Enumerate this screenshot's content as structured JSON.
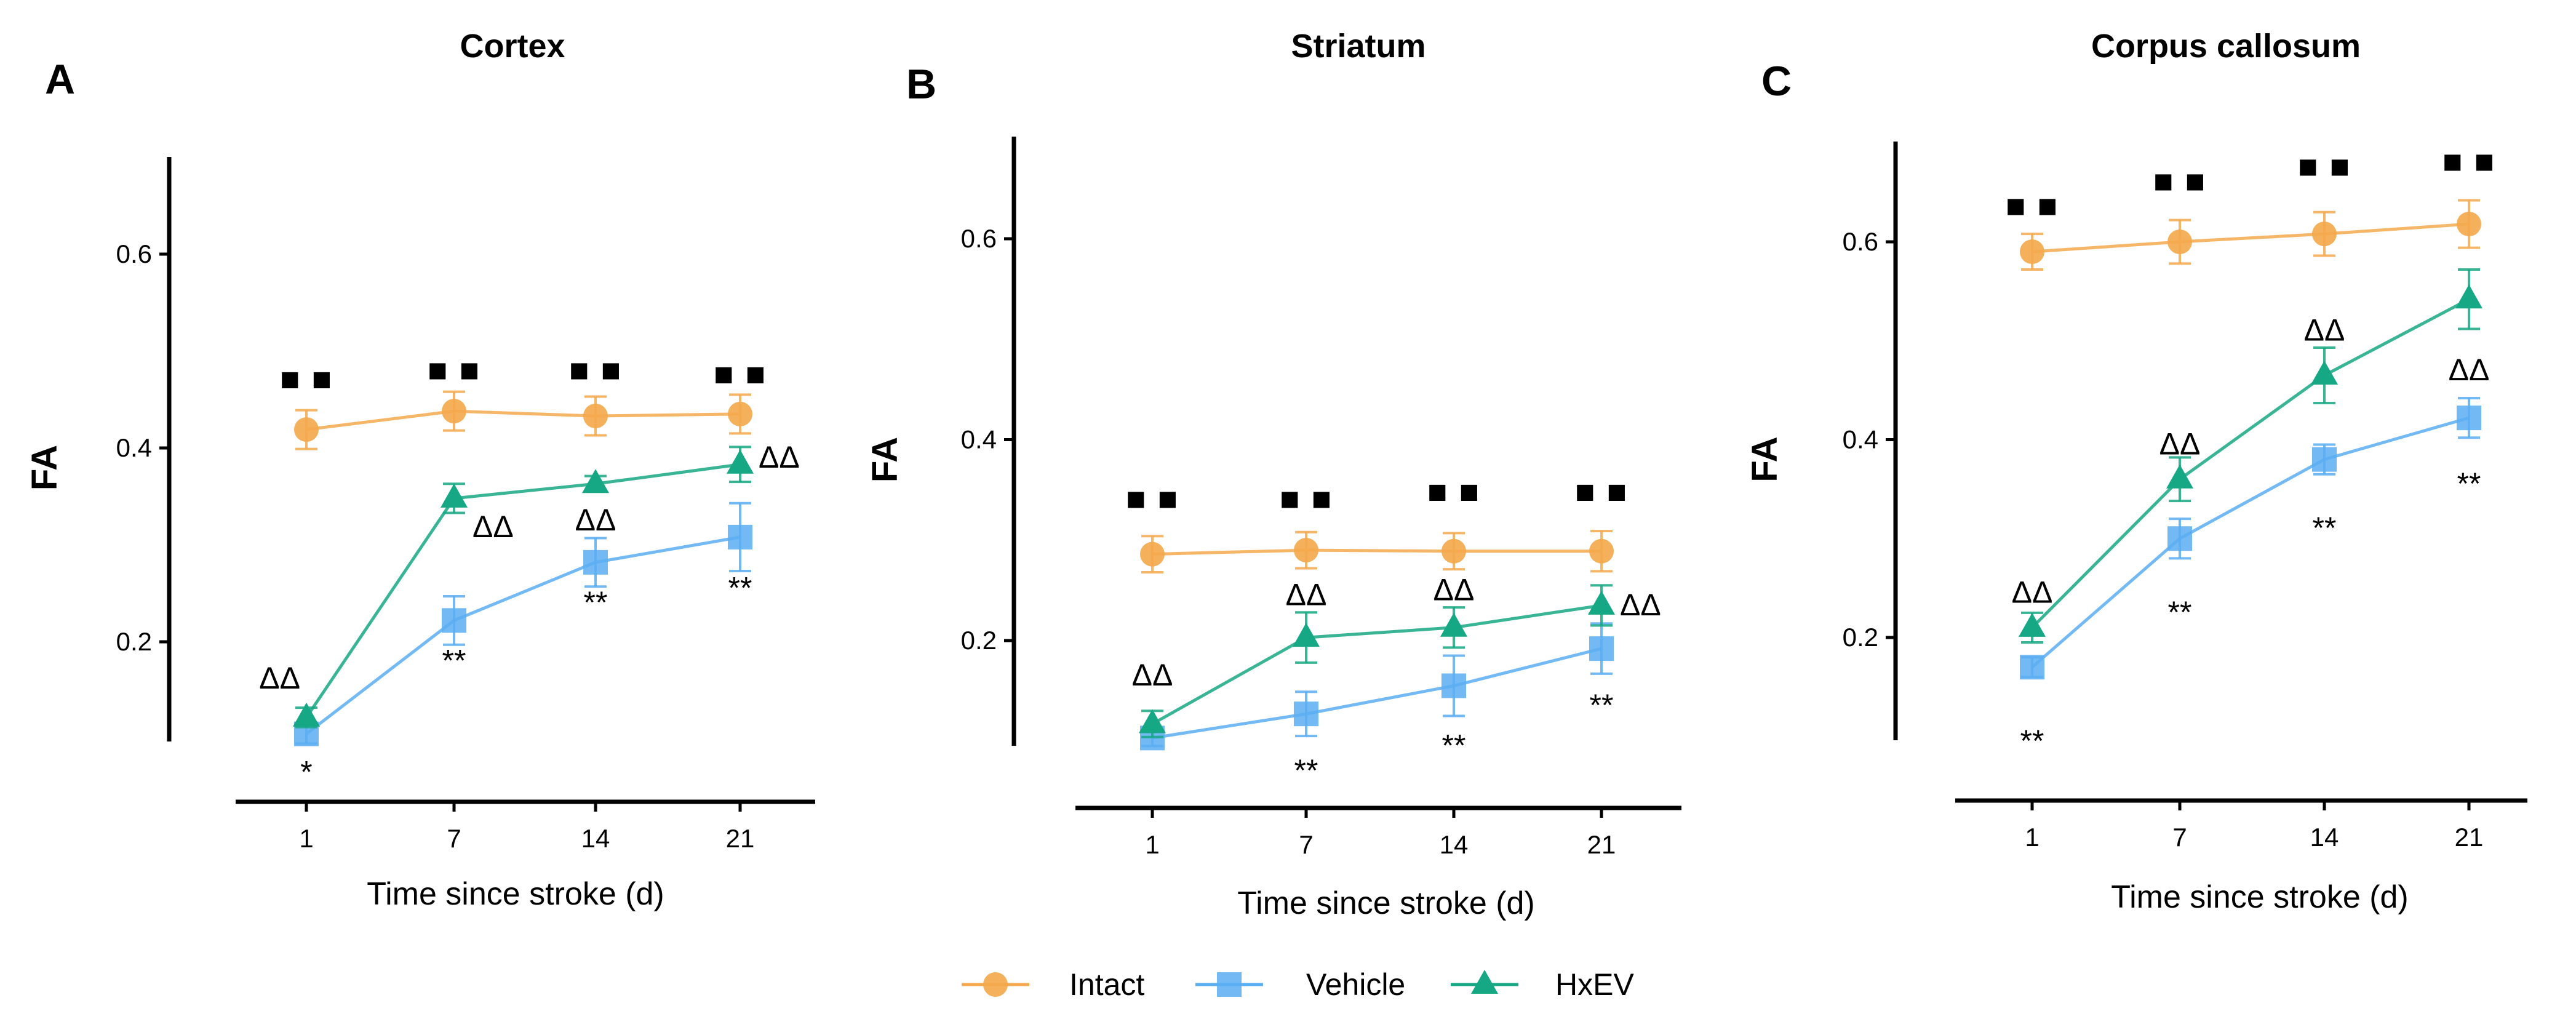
{
  "colors": {
    "Intact": "#f4a94e",
    "Vehicle": "#5aaef2",
    "HxEV": "#16a884",
    "axis": "#000000"
  },
  "legend": {
    "items": [
      {
        "name": "Intact",
        "marker": "circle"
      },
      {
        "name": "Vehicle",
        "marker": "square"
      },
      {
        "name": "HxEV",
        "marker": "triangle"
      }
    ]
  },
  "chart_data": [
    {
      "type": "line",
      "panel": "A",
      "title": "Cortex",
      "xlabel": "Time since stroke (d)",
      "ylabel": "FA",
      "categories": [
        "1",
        "7",
        "14",
        "21"
      ],
      "ylim": [
        0.1,
        0.7
      ],
      "yticks": [
        0.2,
        0.4,
        0.6
      ],
      "ytick_labels": [
        "0.2",
        "0.4",
        "0.6"
      ],
      "series": [
        {
          "name": "Intact",
          "values": [
            0.419,
            0.438,
            0.433,
            0.435
          ],
          "errors": [
            0.02,
            0.02,
            0.02,
            0.02
          ]
        },
        {
          "name": "Vehicle",
          "values": [
            0.105,
            0.222,
            0.282,
            0.308
          ],
          "errors": [
            0.01,
            0.025,
            0.025,
            0.035
          ]
        },
        {
          "name": "HxEV",
          "values": [
            0.122,
            0.348,
            0.363,
            0.383
          ],
          "errors": [
            0.01,
            0.015,
            0.008,
            0.018
          ]
        }
      ],
      "annotations": [
        {
          "text": "■ ■",
          "x": "1",
          "y": 0.47,
          "pos": "center"
        },
        {
          "text": "■ ■",
          "x": "7",
          "y": 0.479,
          "pos": "center"
        },
        {
          "text": "■ ■",
          "x": "14",
          "y": 0.479,
          "pos": "center"
        },
        {
          "text": "■ ■",
          "x": "21",
          "y": 0.475,
          "pos": "center"
        },
        {
          "text": "ΔΔ",
          "x": "1",
          "y": 0.162,
          "pos": "left"
        },
        {
          "text": "ΔΔ",
          "x": "7",
          "y": 0.318,
          "pos": "right"
        },
        {
          "text": "ΔΔ",
          "x": "14",
          "y": 0.325,
          "pos": "center"
        },
        {
          "text": "ΔΔ",
          "x": "21",
          "y": 0.39,
          "pos": "right"
        },
        {
          "text": "*",
          "x": "1",
          "y": 0.065,
          "pos": "center"
        },
        {
          "text": "**",
          "x": "7",
          "y": 0.18,
          "pos": "center"
        },
        {
          "text": "**",
          "x": "14",
          "y": 0.24,
          "pos": "center"
        },
        {
          "text": "**",
          "x": "21",
          "y": 0.255,
          "pos": "center"
        }
      ]
    },
    {
      "type": "line",
      "panel": "B",
      "title": "Striatum",
      "xlabel": "Time since stroke (d)",
      "ylabel": "FA",
      "categories": [
        "1",
        "7",
        "14",
        "21"
      ],
      "ylim": [
        0.1,
        0.7
      ],
      "yticks": [
        0.2,
        0.4,
        0.6
      ],
      "ytick_labels": [
        "0.2",
        "0.4",
        "0.6"
      ],
      "series": [
        {
          "name": "Intact",
          "values": [
            0.286,
            0.29,
            0.289,
            0.289
          ],
          "errors": [
            0.018,
            0.018,
            0.018,
            0.02
          ]
        },
        {
          "name": "Vehicle",
          "values": [
            0.103,
            0.127,
            0.155,
            0.192
          ],
          "errors": [
            0.008,
            0.022,
            0.03,
            0.025
          ]
        },
        {
          "name": "HxEV",
          "values": [
            0.117,
            0.203,
            0.213,
            0.235
          ],
          "errors": [
            0.013,
            0.025,
            0.02,
            0.02
          ]
        }
      ],
      "annotations": [
        {
          "text": "■ ■",
          "x": "1",
          "y": 0.34,
          "pos": "center"
        },
        {
          "text": "■ ■",
          "x": "7",
          "y": 0.34,
          "pos": "center"
        },
        {
          "text": "■ ■",
          "x": "14",
          "y": 0.347,
          "pos": "center"
        },
        {
          "text": "■ ■",
          "x": "21",
          "y": 0.347,
          "pos": "center"
        },
        {
          "text": "ΔΔ",
          "x": "1",
          "y": 0.165,
          "pos": "center"
        },
        {
          "text": "ΔΔ",
          "x": "7",
          "y": 0.245,
          "pos": "center"
        },
        {
          "text": "ΔΔ",
          "x": "14",
          "y": 0.25,
          "pos": "center"
        },
        {
          "text": "ΔΔ",
          "x": "21",
          "y": 0.235,
          "pos": "right"
        },
        {
          "text": "**",
          "x": "7",
          "y": 0.07,
          "pos": "center"
        },
        {
          "text": "**",
          "x": "14",
          "y": 0.095,
          "pos": "center"
        },
        {
          "text": "**",
          "x": "21",
          "y": 0.135,
          "pos": "center"
        }
      ]
    },
    {
      "type": "line",
      "panel": "C",
      "title": "Corpus callosum",
      "xlabel": "Time since stroke (d)",
      "ylabel": "FA",
      "categories": [
        "1",
        "7",
        "14",
        "21"
      ],
      "ylim": [
        0.1,
        0.7
      ],
      "yticks": [
        0.2,
        0.4,
        0.6
      ],
      "ytick_labels": [
        "0.2",
        "0.4",
        "0.6"
      ],
      "series": [
        {
          "name": "Intact",
          "values": [
            0.59,
            0.6,
            0.608,
            0.618
          ],
          "errors": [
            0.018,
            0.022,
            0.022,
            0.024
          ]
        },
        {
          "name": "Vehicle",
          "values": [
            0.17,
            0.3,
            0.38,
            0.422
          ],
          "errors": [
            0.01,
            0.02,
            0.015,
            0.02
          ]
        },
        {
          "name": "HxEV",
          "values": [
            0.21,
            0.36,
            0.465,
            0.542
          ],
          "errors": [
            0.015,
            0.022,
            0.028,
            0.03
          ]
        }
      ],
      "annotations": [
        {
          "text": "■ ■",
          "x": "1",
          "y": 0.635,
          "pos": "center"
        },
        {
          "text": "■ ■",
          "x": "7",
          "y": 0.66,
          "pos": "center"
        },
        {
          "text": "■ ■",
          "x": "14",
          "y": 0.675,
          "pos": "center"
        },
        {
          "text": "■ ■",
          "x": "21",
          "y": 0.68,
          "pos": "center"
        },
        {
          "text": "ΔΔ",
          "x": "1",
          "y": 0.245,
          "pos": "center"
        },
        {
          "text": "ΔΔ",
          "x": "7",
          "y": 0.395,
          "pos": "center"
        },
        {
          "text": "ΔΔ",
          "x": "14",
          "y": 0.51,
          "pos": "center"
        },
        {
          "text": "ΔΔ",
          "x": "21",
          "y": 0.47,
          "pos": "center"
        },
        {
          "text": "**",
          "x": "1",
          "y": 0.095,
          "pos": "center"
        },
        {
          "text": "**",
          "x": "7",
          "y": 0.225,
          "pos": "center"
        },
        {
          "text": "**",
          "x": "14",
          "y": 0.31,
          "pos": "center"
        },
        {
          "text": "**",
          "x": "21",
          "y": 0.355,
          "pos": "center"
        }
      ]
    }
  ]
}
